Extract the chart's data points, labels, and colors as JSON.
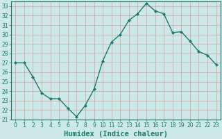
{
  "x": [
    0,
    1,
    2,
    3,
    4,
    5,
    6,
    7,
    8,
    9,
    10,
    11,
    12,
    13,
    14,
    15,
    16,
    17,
    18,
    19,
    20,
    21,
    22,
    23
  ],
  "y": [
    27,
    27,
    25.5,
    23.8,
    23.2,
    23.2,
    22.2,
    21.3,
    22.5,
    24.2,
    27.2,
    29.2,
    30,
    31.5,
    32.2,
    33.3,
    32.5,
    32.2,
    30.2,
    30.3,
    29.3,
    28.2,
    27.8,
    26.8
  ],
  "line_color": "#1a7a6e",
  "marker": "D",
  "marker_size": 2,
  "bg_color": "#cce8e8",
  "grid_color": "#b8d8d8",
  "xlabel": "Humidex (Indice chaleur)",
  "ylim": [
    21,
    33.5
  ],
  "yticks": [
    21,
    22,
    23,
    24,
    25,
    26,
    27,
    28,
    29,
    30,
    31,
    32,
    33
  ],
  "xticks": [
    0,
    1,
    2,
    3,
    4,
    5,
    6,
    7,
    8,
    9,
    10,
    11,
    12,
    13,
    14,
    15,
    16,
    17,
    18,
    19,
    20,
    21,
    22,
    23
  ],
  "tick_label_fontsize": 5.5,
  "xlabel_fontsize": 7.5,
  "line_width": 1.0
}
